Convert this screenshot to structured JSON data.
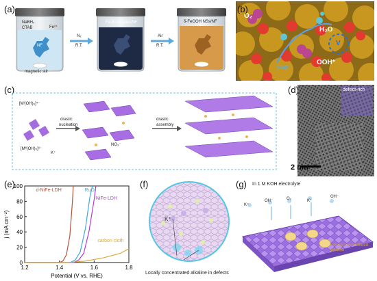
{
  "panels": {
    "a": {
      "label": "(a)",
      "jar1_lines": [
        "NaBH₄",
        "CTAB"
      ],
      "jar1_fe": "Fe²⁺",
      "jar1_ni": "NF",
      "jar1_caption": "magnetic stir",
      "arrow1_top": "N₂",
      "arrow1_bottom": "R.T.",
      "jar2_caption": "Fe-B complex/NF",
      "arrow2_top": "Air",
      "arrow2_bottom": "R.T.",
      "jar3_caption": "δ-FeOOH NSs/NF"
    },
    "b": {
      "label": "(b)",
      "o2": "O₂",
      "h2o": "H₂O",
      "ooh": "OOH*",
      "fe2": "Fe2",
      "v": "V"
    },
    "c": {
      "label": "(c)",
      "ion1": "[Mᴵ(OH)₆]⁴⁻",
      "ion2": "[Mᴵᴵ(OH)₆]³⁻",
      "k": "K⁺",
      "no3": "NO₃⁻",
      "step1": [
        "drastic",
        "nucleation"
      ],
      "step2": [
        "drastic",
        "assembly"
      ]
    },
    "d": {
      "label": "(d)",
      "scale": "2 nm",
      "inset": "defect-rich"
    },
    "e": {
      "label": "(e)"
    },
    "f": {
      "label": "(f)",
      "k": "K⁺",
      "caption": "Locally concentrated alkaline in defects"
    },
    "g": {
      "label": "(g)",
      "title": "In 1 M KOH electrolyte",
      "k": "K⁺",
      "oh": "OH⁻",
      "o2": "O₂",
      "k2": "K⁺",
      "oh2": "OH⁻",
      "note": [
        "Locally concentrated",
        "alkaline"
      ]
    }
  },
  "chart_data": {
    "type": "line",
    "xlabel": "Potential (V vs. RHE)",
    "ylabel": "j (mA cm⁻²)",
    "xlim": [
      1.2,
      1.8
    ],
    "ylim": [
      0,
      100
    ],
    "xticks": [
      "1.2",
      "1.4",
      "1.6",
      "1.8"
    ],
    "yticks": [
      "0",
      "20",
      "40",
      "60",
      "80",
      "100"
    ],
    "series": [
      {
        "name": "d-NiFe-LDH",
        "color": "#b5523b",
        "x": [
          1.2,
          1.4,
          1.42,
          1.44,
          1.46,
          1.475,
          1.48
        ],
        "y": [
          0,
          0,
          2,
          10,
          35,
          80,
          100
        ]
      },
      {
        "name": "RuO₂",
        "color": "#3da9e0",
        "x": [
          1.2,
          1.46,
          1.49,
          1.52,
          1.55,
          1.575,
          1.59
        ],
        "y": [
          0,
          0,
          3,
          14,
          45,
          85,
          100
        ]
      },
      {
        "name": "NiFe-LDH",
        "color": "#b13bd6",
        "x": [
          1.2,
          1.48,
          1.51,
          1.54,
          1.57,
          1.6,
          1.61
        ],
        "y": [
          0,
          0,
          3,
          12,
          40,
          82,
          100
        ]
      },
      {
        "name": "carbon cloth",
        "color": "#d9a93a",
        "x": [
          1.2,
          1.45,
          1.55,
          1.65,
          1.75,
          1.8
        ],
        "y": [
          0,
          0,
          2,
          6,
          12,
          18
        ]
      }
    ]
  }
}
